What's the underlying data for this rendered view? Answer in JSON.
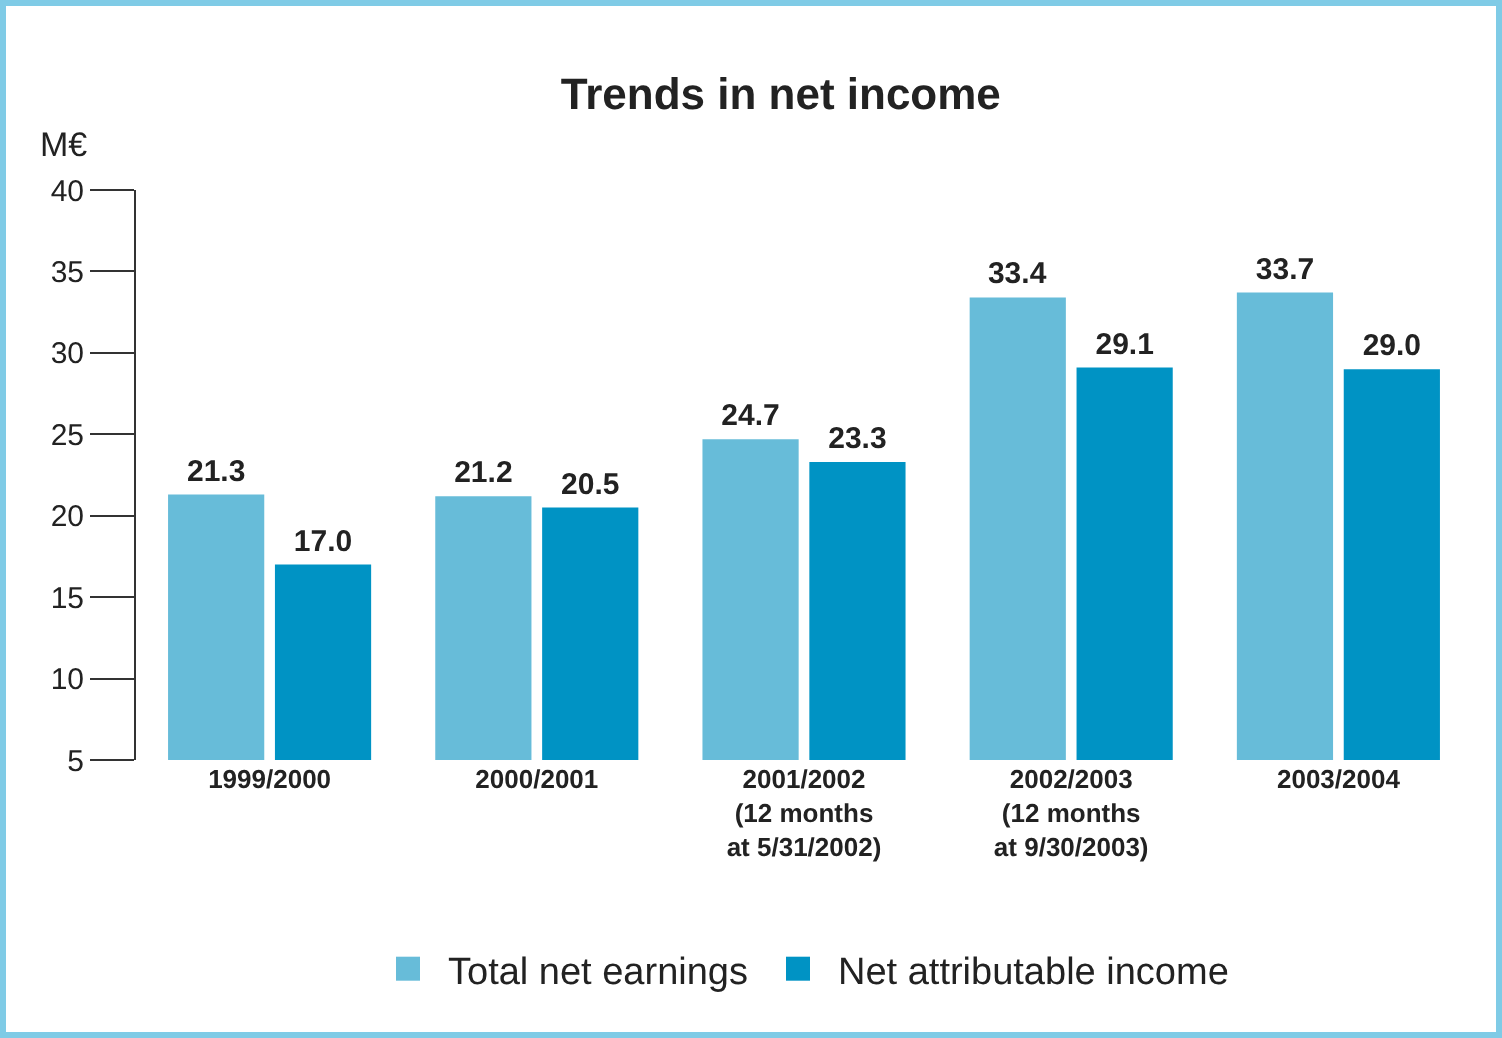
{
  "chart_data": {
    "type": "bar",
    "title": "Trends in net income",
    "ylabel": "M€",
    "categories": [
      "1999/2000",
      "2000/2001",
      "2001/2002\n(12 months\nat 5/31/2002)",
      "2002/2003\n(12 months\nat 9/30/2003)",
      "2003/2004"
    ],
    "series": [
      {
        "name": "Total net earnings",
        "color": "#67bcd9",
        "values": [
          21.3,
          21.2,
          24.7,
          33.4,
          33.7
        ],
        "value_labels": [
          "21.3",
          "21.2",
          "24.7",
          "33.4",
          "33.7"
        ]
      },
      {
        "name": "Net attributable income",
        "color": "#0093c4",
        "values": [
          17.0,
          20.5,
          23.3,
          29.1,
          29.0
        ],
        "value_labels": [
          "17.0",
          "20.5",
          "23.3",
          "29.1",
          "29.0"
        ]
      }
    ],
    "ylim": [
      5,
      40
    ],
    "yticks": [
      5,
      10,
      15,
      20,
      25,
      30,
      35,
      40
    ],
    "grid": false,
    "legend": "bottom"
  }
}
